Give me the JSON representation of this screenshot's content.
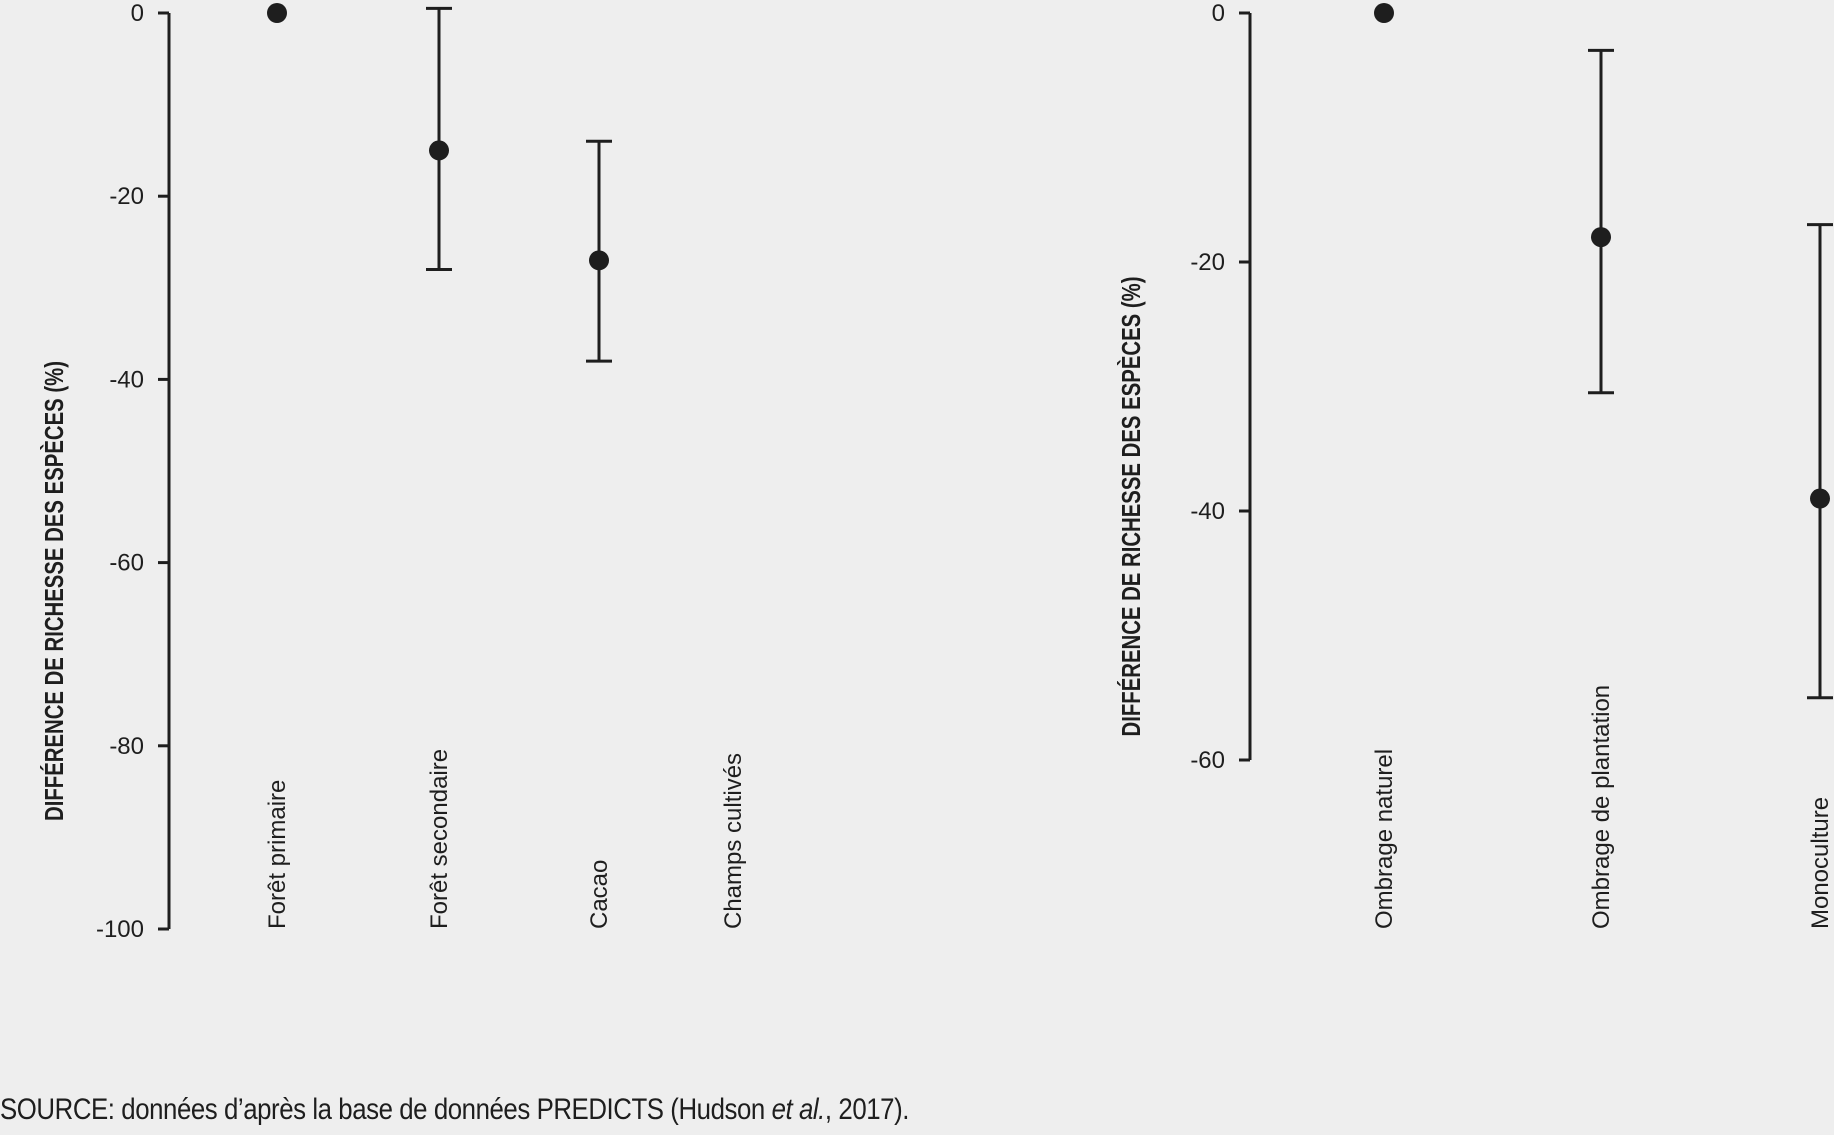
{
  "chart_data": [
    {
      "type": "scatter",
      "ylabel": "DIFFÉRENCE DE RICHESSE DES ESPÈCES (%)",
      "ylim": [
        -100,
        0
      ],
      "yticks": [
        0,
        -20,
        -40,
        -60,
        -80,
        -100
      ],
      "categories": [
        "Forêt primaire",
        "Forêt secondaire",
        "Cacao",
        "Champs cultivés"
      ],
      "values": [
        0,
        -15,
        -27,
        null
      ],
      "error_low": [
        null,
        -28,
        -38,
        null
      ],
      "error_high": [
        null,
        0.5,
        -14,
        null
      ]
    },
    {
      "type": "scatter",
      "ylabel": "DIFFÉRENCE DE RICHESSE DES ESPÈCES (%)",
      "ylim": [
        -60,
        0
      ],
      "yticks": [
        0,
        -20,
        -40,
        -60
      ],
      "categories": [
        "Ombrage naturel",
        "Ombrage de plantation",
        "Monoculture"
      ],
      "values": [
        0,
        -18,
        -39
      ],
      "error_low": [
        null,
        -30.5,
        -55
      ],
      "error_high": [
        null,
        -3,
        -17
      ]
    }
  ],
  "source": {
    "prefix": "SOURCE: données d’après la base de données PREDICTS (Hudson ",
    "italic": "et al.",
    "suffix": ", 2017)."
  },
  "colors": {
    "ink": "#1e1e1e",
    "background": "#eeeeee"
  }
}
